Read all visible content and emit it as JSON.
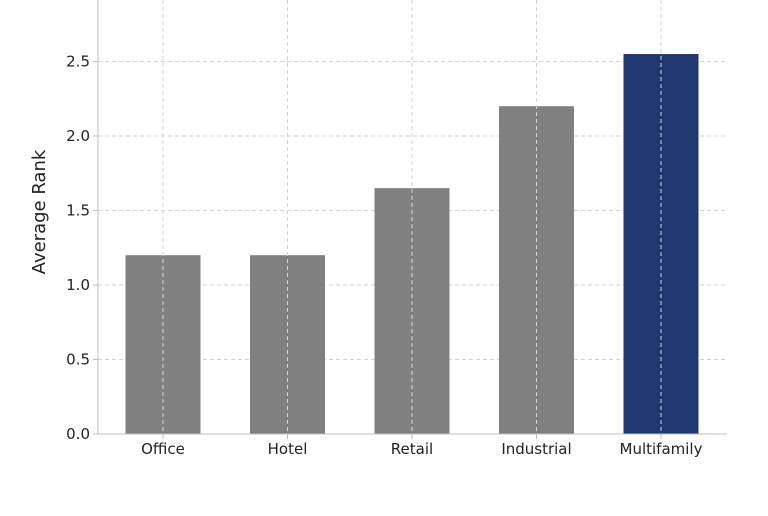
{
  "chart_data": {
    "type": "bar",
    "title": "",
    "xlabel": "",
    "ylabel": "Average Rank",
    "categories": [
      "Office",
      "Hotel",
      "Retail",
      "Industrial",
      "Multifamily"
    ],
    "values": [
      1.2,
      1.2,
      1.65,
      2.2,
      2.55
    ],
    "ylim": [
      0,
      2.8
    ],
    "yticks": [
      "0.0",
      "0.5",
      "1.0",
      "1.5",
      "2.0",
      "2.5"
    ],
    "grid": true,
    "colors": {
      "default_bar": "#808080",
      "highlight_bar": "#1f3870",
      "grid": "#d3d3d3",
      "axis": "#bfbfbf"
    },
    "highlight_category": "Multifamily"
  }
}
